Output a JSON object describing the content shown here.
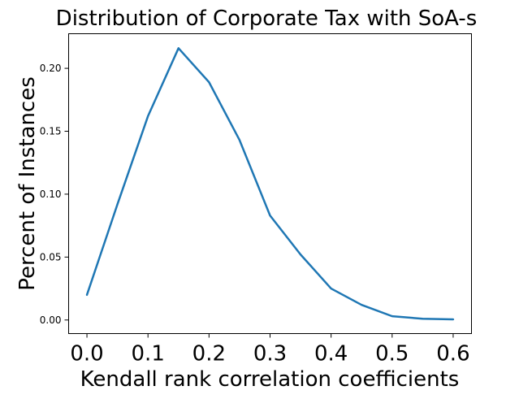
{
  "chart_data": {
    "type": "line",
    "title": "Distribution of Corporate Tax with SoA-s",
    "xlabel": "Kendall rank correlation coefficients",
    "ylabel": "Percent of Instances",
    "xlim": [
      -0.03,
      0.63
    ],
    "ylim": [
      -0.0108,
      0.2275
    ],
    "xticks": [
      0.0,
      0.1,
      0.2,
      0.3,
      0.4,
      0.5,
      0.6
    ],
    "xtick_labels": [
      "0.0",
      "0.1",
      "0.2",
      "0.3",
      "0.4",
      "0.5",
      "0.6"
    ],
    "yticks": [
      0.0,
      0.05,
      0.1,
      0.15,
      0.2
    ],
    "ytick_labels": [
      "0.00",
      "0.05",
      "0.10",
      "0.15",
      "0.20"
    ],
    "grid": false,
    "series": [
      {
        "color": "#1f77b4",
        "x": [
          0.0,
          0.05,
          0.1,
          0.15,
          0.2,
          0.25,
          0.3,
          0.35,
          0.4,
          0.45,
          0.5,
          0.55,
          0.6
        ],
        "y": [
          0.02,
          0.092,
          0.162,
          0.216,
          0.189,
          0.143,
          0.083,
          0.052,
          0.025,
          0.012,
          0.003,
          0.001,
          0.0005
        ]
      }
    ]
  }
}
